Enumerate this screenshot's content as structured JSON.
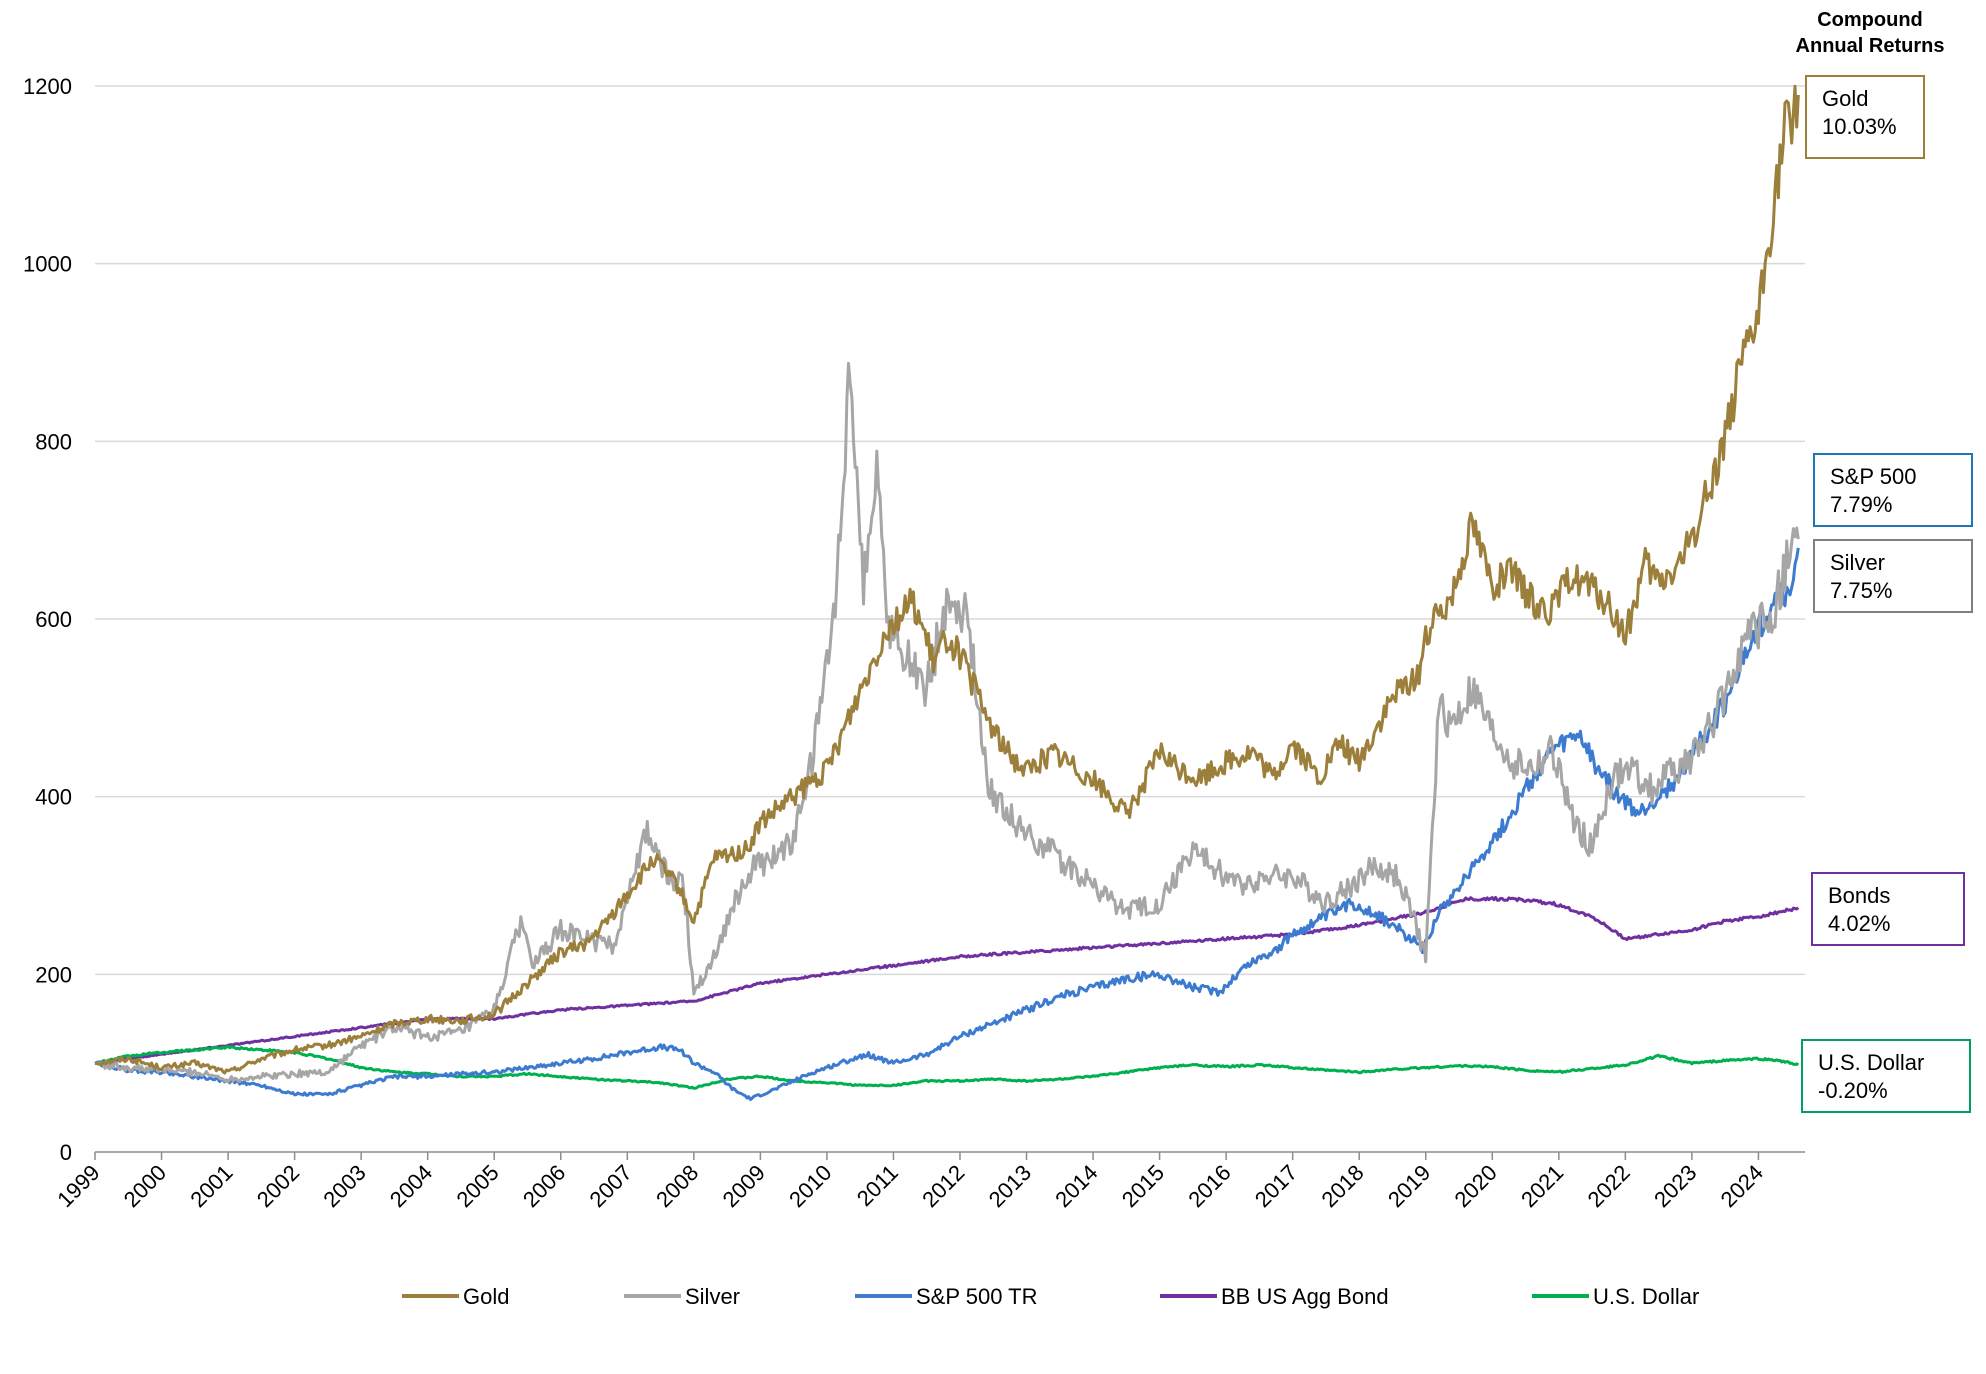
{
  "chart_data": {
    "type": "line",
    "title": "",
    "header": [
      "Compound",
      "Annual Returns"
    ],
    "xlabel": "",
    "ylabel": "",
    "ylim": [
      0,
      1200
    ],
    "y_ticks": [
      "0",
      "200",
      "400",
      "600",
      "800",
      "1000",
      "1200"
    ],
    "xlim": [
      1999,
      2024.7
    ],
    "x_ticks": [
      "1999",
      "2000",
      "2001",
      "2002",
      "2003",
      "2004",
      "2005",
      "2006",
      "2007",
      "2008",
      "2009",
      "2010",
      "2011",
      "2012",
      "2013",
      "2014",
      "2015",
      "2016",
      "2017",
      "2018",
      "2019",
      "2020",
      "2021",
      "2022",
      "2023",
      "2024"
    ],
    "grid": "horizontal",
    "legend_position": "bottom",
    "series": [
      {
        "name": "Gold",
        "color": "#9C7F3A",
        "end_label": "Gold",
        "cagr": "10.03%",
        "box_color": "#9C7F3A",
        "x": [
          1999.0,
          1999.5,
          2000.0,
          2000.5,
          2001.0,
          2001.5,
          2002.0,
          2002.5,
          2003.0,
          2003.5,
          2004.0,
          2004.5,
          2005.0,
          2005.5,
          2006.0,
          2006.4,
          2006.7,
          2007.0,
          2007.4,
          2007.75,
          2008.0,
          2008.3,
          2008.8,
          2009.0,
          2009.5,
          2010.0,
          2010.5,
          2010.9,
          2011.3,
          2011.6,
          2011.8,
          2012.0,
          2012.4,
          2012.7,
          2013.0,
          2013.4,
          2013.6,
          2014.0,
          2014.5,
          2014.8,
          2015.0,
          2015.3,
          2015.6,
          2016.0,
          2016.4,
          2016.7,
          2017.0,
          2017.4,
          2017.7,
          2018.0,
          2018.5,
          2018.9,
          2019.0,
          2019.4,
          2019.7,
          2020.0,
          2020.3,
          2020.6,
          2020.9,
          2021.2,
          2021.4,
          2021.7,
          2022.0,
          2022.3,
          2022.5,
          2022.8,
          2023.0,
          2023.4,
          2023.7,
          2024.0,
          2024.2,
          2024.4,
          2024.6
        ],
        "values": [
          100,
          105,
          95,
          100,
          90,
          105,
          115,
          120,
          130,
          145,
          150,
          148,
          155,
          190,
          225,
          235,
          260,
          290,
          330,
          300,
          260,
          330,
          340,
          370,
          400,
          430,
          520,
          590,
          620,
          550,
          580,
          560,
          490,
          450,
          430,
          450,
          440,
          420,
          380,
          420,
          450,
          430,
          420,
          440,
          450,
          420,
          460,
          420,
          460,
          440,
          510,
          540,
          580,
          630,
          710,
          640,
          650,
          620,
          610,
          650,
          640,
          620,
          580,
          660,
          640,
          660,
          690,
          780,
          870,
          940,
          1050,
          1150,
          1190
        ]
      },
      {
        "name": "Silver",
        "color": "#A6A6A6",
        "end_label": "Silver",
        "cagr": "7.75%",
        "box_color": "#7F7F7F",
        "x": [
          1999.0,
          1999.5,
          2000.0,
          2000.5,
          2001.0,
          2001.5,
          2002.0,
          2002.5,
          2003.0,
          2003.5,
          2004.0,
          2004.5,
          2005.0,
          2005.4,
          2005.6,
          2006.0,
          2006.4,
          2006.8,
          2007.0,
          2007.3,
          2007.6,
          2007.85,
          2008.0,
          2008.3,
          2008.6,
          2008.9,
          2009.2,
          2009.5,
          2009.8,
          2010.1,
          2010.35,
          2010.55,
          2010.75,
          2010.9,
          2011.2,
          2011.5,
          2011.8,
          2012.1,
          2012.4,
          2012.7,
          2013.0,
          2013.5,
          2014.0,
          2014.5,
          2015.0,
          2015.5,
          2015.8,
          2016.2,
          2016.6,
          2017.0,
          2017.5,
          2017.9,
          2018.2,
          2018.6,
          2019.0,
          2019.2,
          2019.4,
          2019.7,
          2020.0,
          2020.3,
          2020.6,
          2020.9,
          2021.2,
          2021.5,
          2021.8,
          2022.1,
          2022.4,
          2022.7,
          2023.0,
          2023.4,
          2023.7,
          2024.0,
          2024.2,
          2024.4,
          2024.6
        ],
        "values": [
          100,
          95,
          92,
          90,
          82,
          85,
          88,
          90,
          120,
          140,
          130,
          135,
          160,
          260,
          210,
          250,
          240,
          230,
          290,
          360,
          310,
          300,
          180,
          220,
          280,
          320,
          330,
          350,
          450,
          600,
          880,
          640,
          780,
          600,
          560,
          520,
          620,
          610,
          420,
          380,
          360,
          330,
          300,
          270,
          280,
          340,
          320,
          300,
          310,
          310,
          280,
          300,
          320,
          310,
          220,
          500,
          480,
          520,
          470,
          440,
          430,
          450,
          380,
          340,
          420,
          430,
          410,
          430,
          440,
          500,
          560,
          590,
          600,
          660,
          690
        ]
      },
      {
        "name": "S&P 500 TR",
        "color": "#3C7BD0",
        "end_label": "S&P 500",
        "cagr": "7.79%",
        "box_color": "#1F77B4",
        "x": [
          1999.0,
          1999.5,
          2000.0,
          2000.5,
          2001.0,
          2001.5,
          2002.0,
          2002.5,
          2003.0,
          2003.5,
          2004.0,
          2004.5,
          2005.0,
          2005.5,
          2006.0,
          2006.5,
          2007.0,
          2007.5,
          2007.8,
          2008.0,
          2008.3,
          2008.6,
          2008.85,
          2009.2,
          2009.5,
          2009.8,
          2010.2,
          2010.6,
          2011.0,
          2011.5,
          2012.0,
          2012.5,
          2013.0,
          2013.5,
          2014.0,
          2014.5,
          2015.0,
          2015.5,
          2015.9,
          2016.3,
          2016.8,
          2017.0,
          2017.5,
          2017.9,
          2018.2,
          2018.6,
          2018.95,
          2019.2,
          2019.5,
          2019.8,
          2020.2,
          2020.6,
          2020.9,
          2021.3,
          2021.6,
          2021.9,
          2022.2,
          2022.5,
          2022.8,
          2023.0,
          2023.3,
          2023.6,
          2023.9,
          2024.1,
          2024.3,
          2024.45,
          2024.6
        ],
        "values": [
          100,
          92,
          90,
          85,
          80,
          75,
          65,
          65,
          75,
          85,
          85,
          88,
          90,
          95,
          100,
          105,
          112,
          118,
          115,
          100,
          90,
          70,
          60,
          70,
          80,
          90,
          100,
          110,
          100,
          110,
          130,
          145,
          160,
          175,
          185,
          195,
          200,
          185,
          180,
          210,
          230,
          245,
          265,
          280,
          270,
          250,
          230,
          270,
          300,
          330,
          370,
          420,
          450,
          470,
          430,
          400,
          380,
          400,
          420,
          450,
          480,
          520,
          580,
          600,
          640,
          620,
          680
        ]
      },
      {
        "name": "BB US Agg Bond",
        "color": "#7030A0",
        "end_label": "Bonds",
        "cagr": "4.02%",
        "box_color": "#7030A0",
        "x": [
          1999.0,
          2000.0,
          2001.0,
          2002.0,
          2003.0,
          2004.0,
          2005.0,
          2006.0,
          2007.0,
          2008.0,
          2009.0,
          2010.0,
          2011.0,
          2012.0,
          2013.0,
          2014.0,
          2015.0,
          2016.0,
          2017.0,
          2018.0,
          2019.0,
          2019.6,
          2020.3,
          2020.9,
          2021.5,
          2022.0,
          2022.5,
          2023.0,
          2023.5,
          2024.0,
          2024.3,
          2024.6
        ],
        "values": [
          100,
          110,
          120,
          130,
          140,
          150,
          150,
          160,
          165,
          170,
          190,
          200,
          210,
          220,
          225,
          230,
          235,
          240,
          245,
          255,
          270,
          285,
          285,
          280,
          265,
          240,
          245,
          250,
          260,
          265,
          270,
          275
        ]
      },
      {
        "name": "U.S. Dollar",
        "color": "#00B050",
        "end_label": "U.S. Dollar",
        "cagr": "-0.20%",
        "box_color": "#00A060",
        "x": [
          1999.0,
          1999.5,
          2000.0,
          2000.5,
          2001.0,
          2001.5,
          2002.0,
          2002.5,
          2003.0,
          2003.5,
          2004.0,
          2004.5,
          2005.0,
          2005.5,
          2006.0,
          2006.5,
          2007.0,
          2007.5,
          2008.0,
          2008.5,
          2009.0,
          2009.5,
          2010.0,
          2010.5,
          2011.0,
          2011.5,
          2012.0,
          2012.5,
          2013.0,
          2013.5,
          2014.0,
          2014.5,
          2015.0,
          2015.5,
          2016.0,
          2016.5,
          2017.0,
          2017.5,
          2018.0,
          2018.5,
          2019.0,
          2019.5,
          2020.0,
          2020.5,
          2021.0,
          2021.5,
          2022.0,
          2022.5,
          2023.0,
          2023.5,
          2024.0,
          2024.3,
          2024.6
        ],
        "values": [
          100,
          108,
          112,
          115,
          118,
          115,
          112,
          105,
          95,
          90,
          88,
          85,
          85,
          88,
          85,
          82,
          80,
          78,
          72,
          82,
          85,
          80,
          78,
          75,
          75,
          80,
          80,
          82,
          80,
          82,
          85,
          90,
          95,
          98,
          96,
          98,
          95,
          92,
          90,
          93,
          95,
          97,
          96,
          92,
          90,
          94,
          98,
          108,
          100,
          103,
          105,
          103,
          98
        ]
      }
    ]
  }
}
